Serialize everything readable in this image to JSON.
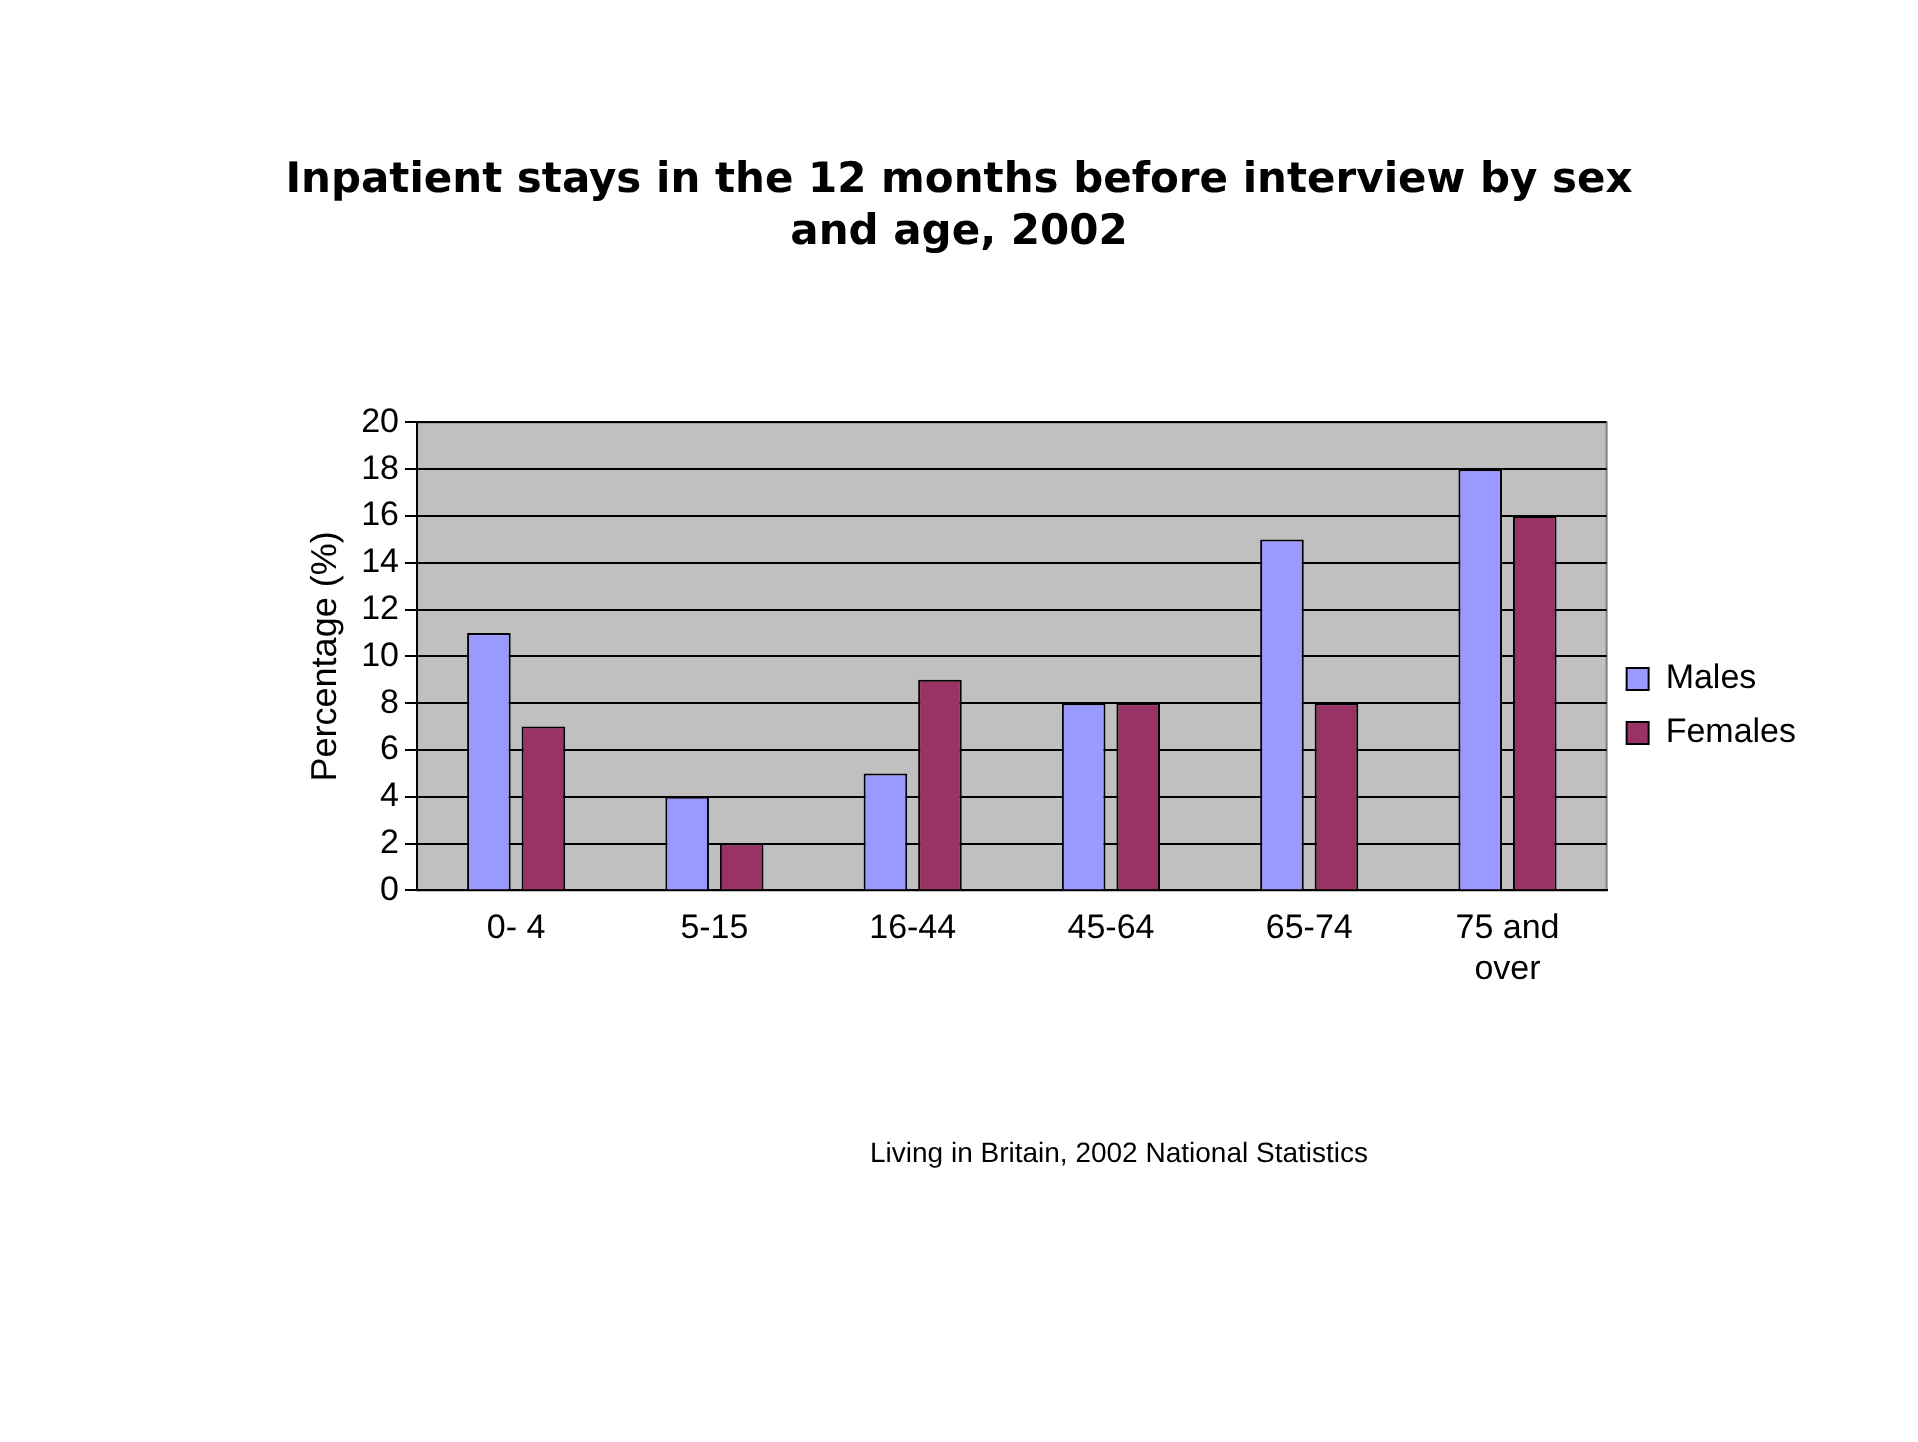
{
  "chart_data": {
    "type": "bar",
    "title": "Inpatient stays in the 12 months before interview by sex and age, 2002",
    "ylabel": "Percentage (%)",
    "categories": [
      "0- 4",
      "5-15",
      "16-44",
      "45-64",
      "65-74",
      "75 and over"
    ],
    "series": [
      {
        "name": "Males",
        "color": "#9999ff",
        "values": [
          11,
          4,
          5,
          8,
          15,
          18
        ]
      },
      {
        "name": "Females",
        "color": "#993366",
        "values": [
          7,
          2,
          9,
          8,
          8,
          16
        ]
      }
    ],
    "ylim": [
      0,
      20
    ],
    "yticks": [
      0,
      2,
      4,
      6,
      8,
      10,
      12,
      14,
      16,
      18,
      20
    ],
    "grid": "y",
    "legend": "right",
    "annotations": [
      "Living in Britain, 2002  National Statistics"
    ]
  }
}
